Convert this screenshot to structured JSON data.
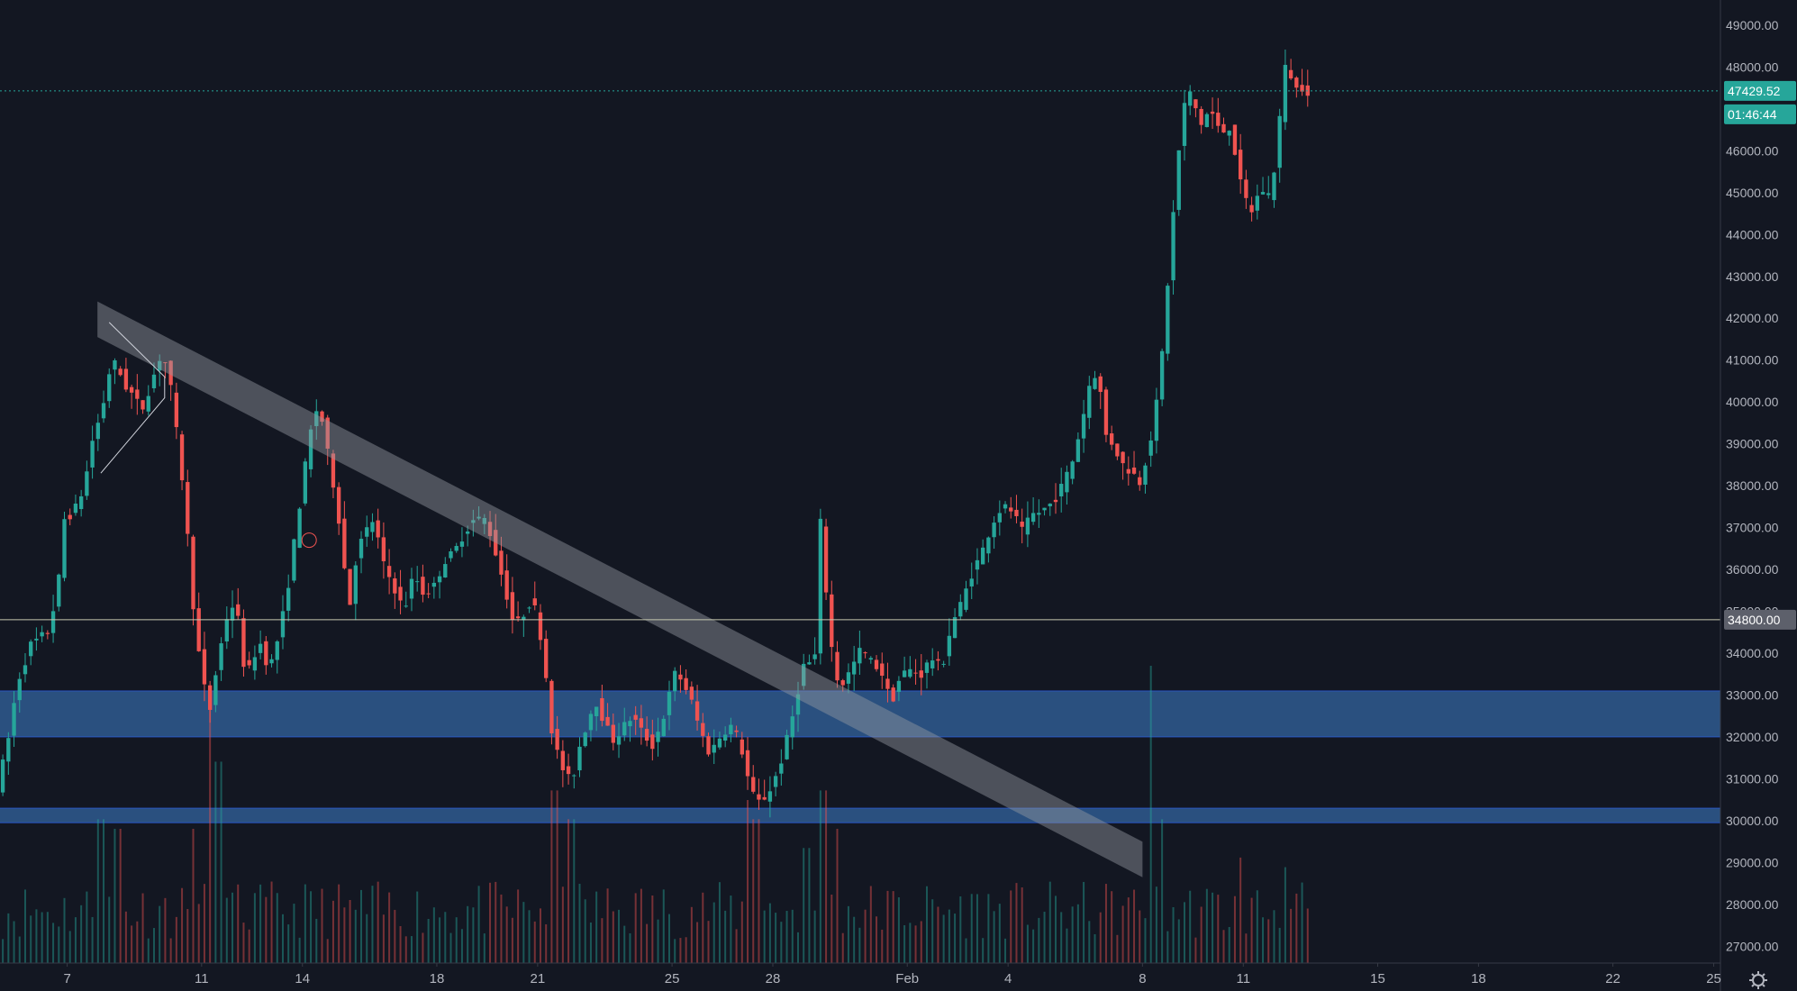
{
  "chart_data": {
    "type": "candlestick",
    "symbol": "",
    "x_unit": "day",
    "ylim": [
      26600,
      49600
    ],
    "y_ticks": [
      27000,
      28000,
      29000,
      30000,
      31000,
      32000,
      33000,
      34000,
      35000,
      36000,
      37000,
      38000,
      39000,
      40000,
      41000,
      42000,
      43000,
      44000,
      45000,
      46000,
      47000,
      48000,
      49000
    ],
    "y_tick_labels": [
      "27000.00",
      "28000.00",
      "29000.00",
      "30000.00",
      "31000.00",
      "32000.00",
      "33000.00",
      "34000.00",
      "35000.00",
      "36000.00",
      "37000.00",
      "38000.00",
      "39000.00",
      "40000.00",
      "41000.00",
      "42000.00",
      "43000.00",
      "44000.00",
      "45000.00",
      "46000.00",
      "47000.00",
      "48000.00",
      "49000.00"
    ],
    "x_ticks": [
      {
        "label": "7",
        "day": 7
      },
      {
        "label": "11",
        "day": 11
      },
      {
        "label": "14",
        "day": 14
      },
      {
        "label": "18",
        "day": 18
      },
      {
        "label": "21",
        "day": 21
      },
      {
        "label": "25",
        "day": 25
      },
      {
        "label": "28",
        "day": 28
      },
      {
        "label": "Feb",
        "day": 32
      },
      {
        "label": "4",
        "day": 35
      },
      {
        "label": "8",
        "day": 39
      },
      {
        "label": "11",
        "day": 42
      },
      {
        "label": "15",
        "day": 46
      },
      {
        "label": "18",
        "day": 49
      },
      {
        "label": "22",
        "day": 53
      },
      {
        "label": "25",
        "day": 56
      }
    ],
    "x_range_days": [
      5.0,
      56.2
    ],
    "price_path": [
      [
        5.0,
        30800
      ],
      [
        5.3,
        31800
      ],
      [
        5.6,
        33300
      ],
      [
        6.0,
        34200
      ],
      [
        6.5,
        34500
      ],
      [
        6.8,
        35500
      ],
      [
        7.0,
        37200
      ],
      [
        7.3,
        37400
      ],
      [
        7.6,
        38000
      ],
      [
        7.8,
        39000
      ],
      [
        8.0,
        39500
      ],
      [
        8.2,
        40100
      ],
      [
        8.4,
        41000
      ],
      [
        8.6,
        40800
      ],
      [
        8.8,
        40400
      ],
      [
        9.0,
        40200
      ],
      [
        9.3,
        39800
      ],
      [
        9.6,
        40500
      ],
      [
        9.9,
        41200
      ],
      [
        10.1,
        40700
      ],
      [
        10.3,
        39500
      ],
      [
        10.5,
        38200
      ],
      [
        10.7,
        36500
      ],
      [
        10.9,
        34500
      ],
      [
        11.1,
        33500
      ],
      [
        11.3,
        32500
      ],
      [
        11.5,
        33500
      ],
      [
        11.8,
        34800
      ],
      [
        12.1,
        35300
      ],
      [
        12.3,
        33800
      ],
      [
        12.5,
        33600
      ],
      [
        12.8,
        34300
      ],
      [
        13.1,
        33600
      ],
      [
        13.4,
        34500
      ],
      [
        13.6,
        35300
      ],
      [
        13.9,
        37000
      ],
      [
        14.1,
        38100
      ],
      [
        14.3,
        39200
      ],
      [
        14.5,
        39800
      ],
      [
        14.7,
        39500
      ],
      [
        14.9,
        38400
      ],
      [
        15.1,
        37700
      ],
      [
        15.3,
        36200
      ],
      [
        15.5,
        35200
      ],
      [
        15.7,
        36400
      ],
      [
        15.9,
        36800
      ],
      [
        16.2,
        37200
      ],
      [
        16.5,
        36100
      ],
      [
        16.8,
        35600
      ],
      [
        17.1,
        35000
      ],
      [
        17.4,
        35900
      ],
      [
        17.7,
        35400
      ],
      [
        18.0,
        35600
      ],
      [
        18.3,
        36200
      ],
      [
        18.6,
        36400
      ],
      [
        18.9,
        36900
      ],
      [
        19.2,
        37200
      ],
      [
        19.5,
        37200
      ],
      [
        19.7,
        36800
      ],
      [
        19.9,
        36200
      ],
      [
        20.1,
        35600
      ],
      [
        20.4,
        34600
      ],
      [
        20.7,
        35000
      ],
      [
        20.9,
        35300
      ],
      [
        21.1,
        34800
      ],
      [
        21.3,
        33700
      ],
      [
        21.5,
        32200
      ],
      [
        21.7,
        31500
      ],
      [
        21.9,
        31100
      ],
      [
        22.1,
        30900
      ],
      [
        22.3,
        31700
      ],
      [
        22.5,
        32200
      ],
      [
        22.8,
        32900
      ],
      [
        23.0,
        32500
      ],
      [
        23.3,
        31900
      ],
      [
        23.6,
        32200
      ],
      [
        23.9,
        32500
      ],
      [
        24.2,
        32100
      ],
      [
        24.5,
        31800
      ],
      [
        24.8,
        32400
      ],
      [
        25.0,
        33000
      ],
      [
        25.2,
        33600
      ],
      [
        25.4,
        33300
      ],
      [
        25.6,
        33000
      ],
      [
        25.9,
        32200
      ],
      [
        26.2,
        31600
      ],
      [
        26.5,
        32000
      ],
      [
        26.8,
        32300
      ],
      [
        27.1,
        31900
      ],
      [
        27.4,
        30800
      ],
      [
        27.6,
        30400
      ],
      [
        27.9,
        30600
      ],
      [
        28.1,
        30900
      ],
      [
        28.4,
        31600
      ],
      [
        28.7,
        32600
      ],
      [
        28.9,
        33400
      ],
      [
        29.1,
        34000
      ],
      [
        29.3,
        33300
      ],
      [
        29.5,
        37100
      ],
      [
        29.7,
        35200
      ],
      [
        29.9,
        33600
      ],
      [
        30.1,
        33200
      ],
      [
        30.4,
        33600
      ],
      [
        30.7,
        34100
      ],
      [
        31.0,
        33800
      ],
      [
        31.3,
        33600
      ],
      [
        31.6,
        32800
      ],
      [
        31.9,
        33500
      ],
      [
        32.2,
        33600
      ],
      [
        32.5,
        33500
      ],
      [
        32.8,
        33900
      ],
      [
        33.1,
        33600
      ],
      [
        33.4,
        34700
      ],
      [
        33.7,
        35200
      ],
      [
        34.0,
        35900
      ],
      [
        34.3,
        36400
      ],
      [
        34.6,
        37100
      ],
      [
        34.9,
        37500
      ],
      [
        35.2,
        37400
      ],
      [
        35.5,
        36900
      ],
      [
        35.8,
        37300
      ],
      [
        36.1,
        37400
      ],
      [
        36.4,
        37600
      ],
      [
        36.7,
        38000
      ],
      [
        37.0,
        38600
      ],
      [
        37.3,
        39600
      ],
      [
        37.6,
        40800
      ],
      [
        37.8,
        40400
      ],
      [
        38.0,
        39200
      ],
      [
        38.2,
        39000
      ],
      [
        38.5,
        38500
      ],
      [
        38.8,
        38300
      ],
      [
        39.0,
        38100
      ],
      [
        39.2,
        38700
      ],
      [
        39.4,
        39400
      ],
      [
        39.6,
        40500
      ],
      [
        39.8,
        42500
      ],
      [
        40.0,
        44500
      ],
      [
        40.2,
        46300
      ],
      [
        40.4,
        47500
      ],
      [
        40.6,
        47200
      ],
      [
        40.8,
        46600
      ],
      [
        41.1,
        47000
      ],
      [
        41.4,
        46400
      ],
      [
        41.7,
        46600
      ],
      [
        42.0,
        45200
      ],
      [
        42.3,
        44500
      ],
      [
        42.6,
        45100
      ],
      [
        42.9,
        44900
      ],
      [
        43.1,
        46200
      ],
      [
        43.3,
        48000
      ],
      [
        43.5,
        47800
      ],
      [
        43.7,
        47400
      ],
      [
        43.9,
        47600
      ],
      [
        44.0,
        47430
      ]
    ],
    "volume_spikes": [
      [
        8.0,
        1500
      ],
      [
        8.5,
        1400
      ],
      [
        10.8,
        1400
      ],
      [
        11.2,
        2700
      ],
      [
        11.5,
        2100
      ],
      [
        21.5,
        1800
      ],
      [
        22.0,
        1500
      ],
      [
        27.2,
        1700
      ],
      [
        27.5,
        1500
      ],
      [
        29.0,
        1200
      ],
      [
        29.5,
        1800
      ],
      [
        29.9,
        1400
      ],
      [
        39.3,
        3100
      ],
      [
        39.6,
        1500
      ],
      [
        41.9,
        1100
      ],
      [
        43.2,
        1000
      ]
    ],
    "current_price_label": "47429.52",
    "countdown_label": "01:46:44",
    "horizontal_line_label": "34800.00",
    "horizontal_line_price": 34800,
    "support_zones": [
      {
        "from": 32000,
        "to": 33100
      },
      {
        "from": 29950,
        "to": 30300
      }
    ],
    "trend_channel": {
      "start_day": 7.9,
      "start_price": 42400,
      "end_day": 39.0,
      "end_price": 29500,
      "thickness_price": 850
    },
    "colors": {
      "background": "#131722",
      "up": "#26a69a",
      "down": "#ef5350",
      "zone": "#2f5a8f",
      "current_price_tag": "#26a69a",
      "line_tag": "#5d606b"
    }
  }
}
